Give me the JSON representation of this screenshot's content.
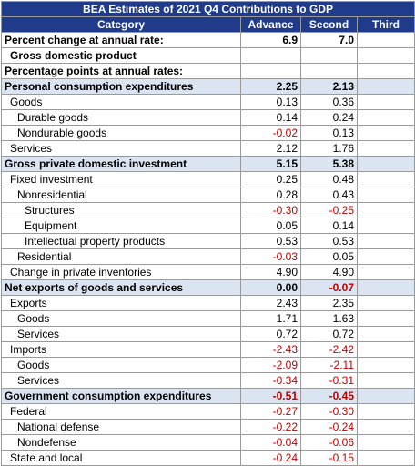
{
  "title": "BEA Estimates of 2021 Q4 Contributions to GDP",
  "headers": {
    "category": "Category",
    "advance": "Advance",
    "second": "Second",
    "third": "Third"
  },
  "rows": [
    {
      "label": "Percent change at annual rate:",
      "advance": "6.9",
      "second": "7.0",
      "third": "",
      "indent": 0,
      "bold": true,
      "shaded": false
    },
    {
      "label": "Gross domestic product",
      "advance": "",
      "second": "",
      "third": "",
      "indent": 1,
      "bold": true,
      "shaded": false
    },
    {
      "label": "Percentage points at annual rates:",
      "advance": "",
      "second": "",
      "third": "",
      "indent": 0,
      "bold": true,
      "shaded": false
    },
    {
      "label": "Personal consumption expenditures",
      "advance": "2.25",
      "second": "2.13",
      "third": "",
      "indent": 0,
      "bold": true,
      "shaded": true
    },
    {
      "label": "Goods",
      "advance": "0.13",
      "second": "0.36",
      "third": "",
      "indent": 1,
      "bold": false,
      "shaded": false
    },
    {
      "label": "Durable goods",
      "advance": "0.14",
      "second": "0.24",
      "third": "",
      "indent": 2,
      "bold": false,
      "shaded": false
    },
    {
      "label": "Nondurable goods",
      "advance": "-0.02",
      "second": "0.13",
      "third": "",
      "indent": 2,
      "bold": false,
      "shaded": false
    },
    {
      "label": "Services",
      "advance": "2.12",
      "second": "1.76",
      "third": "",
      "indent": 1,
      "bold": false,
      "shaded": false
    },
    {
      "label": "Gross private domestic investment",
      "advance": "5.15",
      "second": "5.38",
      "third": "",
      "indent": 0,
      "bold": true,
      "shaded": true
    },
    {
      "label": "Fixed investment",
      "advance": "0.25",
      "second": "0.48",
      "third": "",
      "indent": 1,
      "bold": false,
      "shaded": false
    },
    {
      "label": "Nonresidential",
      "advance": "0.28",
      "second": "0.43",
      "third": "",
      "indent": 2,
      "bold": false,
      "shaded": false
    },
    {
      "label": "Structures",
      "advance": "-0.30",
      "second": "-0.25",
      "third": "",
      "indent": 3,
      "bold": false,
      "shaded": false
    },
    {
      "label": "Equipment",
      "advance": "0.05",
      "second": "0.14",
      "third": "",
      "indent": 3,
      "bold": false,
      "shaded": false
    },
    {
      "label": "Intellectual property products",
      "advance": "0.53",
      "second": "0.53",
      "third": "",
      "indent": 3,
      "bold": false,
      "shaded": false
    },
    {
      "label": "Residential",
      "advance": "-0.03",
      "second": "0.05",
      "third": "",
      "indent": 2,
      "bold": false,
      "shaded": false
    },
    {
      "label": "Change in private inventories",
      "advance": "4.90",
      "second": "4.90",
      "third": "",
      "indent": 1,
      "bold": false,
      "shaded": false
    },
    {
      "label": "Net exports of goods and services",
      "advance": "0.00",
      "second": "-0.07",
      "third": "",
      "indent": 0,
      "bold": true,
      "shaded": true
    },
    {
      "label": "Exports",
      "advance": "2.43",
      "second": "2.35",
      "third": "",
      "indent": 1,
      "bold": false,
      "shaded": false
    },
    {
      "label": "Goods",
      "advance": "1.71",
      "second": "1.63",
      "third": "",
      "indent": 2,
      "bold": false,
      "shaded": false
    },
    {
      "label": "Services",
      "advance": "0.72",
      "second": "0.72",
      "third": "",
      "indent": 2,
      "bold": false,
      "shaded": false
    },
    {
      "label": "Imports",
      "advance": "-2.43",
      "second": "-2.42",
      "third": "",
      "indent": 1,
      "bold": false,
      "shaded": false
    },
    {
      "label": "Goods",
      "advance": "-2.09",
      "second": "-2.11",
      "third": "",
      "indent": 2,
      "bold": false,
      "shaded": false
    },
    {
      "label": "Services",
      "advance": "-0.34",
      "second": "-0.31",
      "third": "",
      "indent": 2,
      "bold": false,
      "shaded": false
    },
    {
      "label": "Government consumption expenditures",
      "advance": "-0.51",
      "second": "-0.45",
      "third": "",
      "indent": 0,
      "bold": true,
      "shaded": true
    },
    {
      "label": "Federal",
      "advance": "-0.27",
      "second": "-0.30",
      "third": "",
      "indent": 1,
      "bold": false,
      "shaded": false
    },
    {
      "label": "National defense",
      "advance": "-0.22",
      "second": "-0.24",
      "third": "",
      "indent": 2,
      "bold": false,
      "shaded": false
    },
    {
      "label": "Nondefense",
      "advance": "-0.04",
      "second": "-0.06",
      "third": "",
      "indent": 2,
      "bold": false,
      "shaded": false
    },
    {
      "label": "State and local",
      "advance": "-0.24",
      "second": "-0.15",
      "third": "",
      "indent": 1,
      "bold": false,
      "shaded": false
    }
  ],
  "colors": {
    "header_bg": "#1f3b8a",
    "header_text": "#ffffff",
    "shade": "#dbe5f1",
    "negative": "#c00000"
  }
}
